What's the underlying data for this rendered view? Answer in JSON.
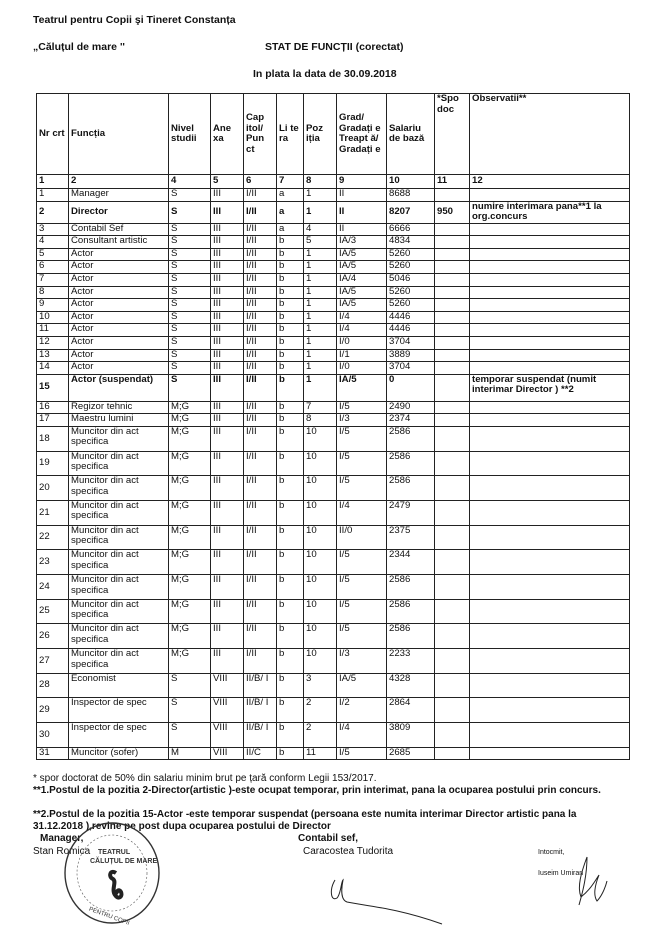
{
  "header": {
    "institution": "Teatrul pentru Copii şi Tineret Constanța",
    "subtitle": "„Căluțul de mare ''",
    "doc_title": "STAT DE FUNCȚII (corectat)",
    "date_line": "In plata  la data de 30.09.2018"
  },
  "table": {
    "columns": [
      "Nr crt",
      "Funcția",
      "Nivel studii",
      "Ane xa",
      "Cap itol/ Pun ct",
      "Li te ra",
      "Poz iția",
      "Grad/ Gradați e Treapt ă/ Gradați e",
      "Salariu de bază",
      "*Spo doc",
      "Observatii**"
    ],
    "column_numbers": [
      "1",
      "2",
      "4",
      "5",
      "6",
      "7",
      "8",
      "9",
      "10",
      "11",
      "12"
    ],
    "rows": [
      {
        "cells": [
          "1",
          "Manager",
          "S",
          "III",
          "I/II",
          "a",
          "1",
          "II",
          "8688",
          "",
          ""
        ]
      },
      {
        "bold": true,
        "cells": [
          "2",
          "Director",
          "S",
          "III",
          "I/II",
          "a",
          "1",
          "II",
          "8207",
          "950",
          "numire interimara pana**1 la  org.concurs"
        ]
      },
      {
        "cells": [
          "3",
          "Contabil Sef",
          "S",
          "III",
          "I/II",
          "a",
          "4",
          "II",
          "6666",
          "",
          ""
        ]
      },
      {
        "cells": [
          "4",
          "Consultant artistic",
          "S",
          "III",
          "I/II",
          "b",
          "5",
          "IA/3",
          "4834",
          "",
          ""
        ]
      },
      {
        "cells": [
          "5",
          "Actor",
          "S",
          "III",
          "I/II",
          "b",
          "1",
          "IA/5",
          "5260",
          "",
          ""
        ]
      },
      {
        "cells": [
          "6",
          "Actor",
          "S",
          "III",
          "I/II",
          "b",
          "1",
          "IA/5",
          "5260",
          "",
          ""
        ]
      },
      {
        "cells": [
          "7",
          "Actor",
          "S",
          "III",
          "I/II",
          "b",
          "1",
          "IA/4",
          "5046",
          "",
          ""
        ]
      },
      {
        "cells": [
          "8",
          "Actor",
          "S",
          "III",
          "I/II",
          "b",
          "1",
          "IA/5",
          "5260",
          "",
          ""
        ]
      },
      {
        "cells": [
          "9",
          "Actor",
          "S",
          "III",
          "I/II",
          "b",
          "1",
          "IA/5",
          "5260",
          "",
          ""
        ]
      },
      {
        "cells": [
          "10",
          "Actor",
          "S",
          "III",
          "I/II",
          "b",
          "1",
          "I/4",
          "4446",
          "",
          ""
        ]
      },
      {
        "cells": [
          "11",
          "Actor",
          "S",
          "III",
          "I/II",
          "b",
          "1",
          "I/4",
          "4446",
          "",
          ""
        ]
      },
      {
        "cells": [
          "12",
          "Actor",
          "S",
          "III",
          "I/II",
          "b",
          "1",
          "I/0",
          "3704",
          "",
          ""
        ]
      },
      {
        "cells": [
          "13",
          "Actor",
          "S",
          "III",
          "I/II",
          "b",
          "1",
          "I/1",
          "3889",
          "",
          ""
        ]
      },
      {
        "cells": [
          "14",
          "Actor",
          "S",
          "III",
          "I/II",
          "b",
          "1",
          "I/0",
          "3704",
          "",
          ""
        ]
      },
      {
        "bold": true,
        "tall": true,
        "cells": [
          "15",
          "Actor (suspendat)",
          "S",
          "III",
          "I/II",
          "b",
          "1",
          "IA/5",
          "0",
          "",
          "temporar suspendat (numit interimar Director ) **2"
        ]
      },
      {
        "cells": [
          "16",
          "Regizor tehnic",
          "M;G",
          "III",
          "I/II",
          "b",
          "7",
          "I/5",
          "2490",
          "",
          ""
        ]
      },
      {
        "cells": [
          "17",
          "Maestru lumini",
          "M;G",
          "III",
          "I/II",
          "b",
          "8",
          "I/3",
          "2374",
          "",
          ""
        ]
      },
      {
        "two": true,
        "cells": [
          "18",
          "Muncitor din act specifica",
          "M;G",
          "III",
          "I/II",
          "b",
          "10",
          "I/5",
          "2586",
          "",
          ""
        ]
      },
      {
        "two": true,
        "cells": [
          "19",
          "Muncitor din act specifica",
          "M;G",
          "III",
          "I/II",
          "b",
          "10",
          "I/5",
          "2586",
          "",
          ""
        ]
      },
      {
        "two": true,
        "cells": [
          "20",
          "Muncitor din act specifica",
          "M;G",
          "III",
          "I/II",
          "b",
          "10",
          "I/5",
          "2586",
          "",
          ""
        ]
      },
      {
        "two": true,
        "cells": [
          "21",
          "Muncitor din act specifica",
          "M;G",
          "III",
          "I/II",
          "b",
          "10",
          "I/4",
          "2479",
          "",
          ""
        ]
      },
      {
        "two": true,
        "cells": [
          "22",
          "Muncitor din act specifica",
          "M;G",
          "III",
          "I/II",
          "b",
          "10",
          "II/0",
          "2375",
          "",
          ""
        ]
      },
      {
        "two": true,
        "cells": [
          "23",
          "Muncitor din act specifica",
          "M;G",
          "III",
          "I/II",
          "b",
          "10",
          "I/5",
          "2344",
          "",
          ""
        ]
      },
      {
        "two": true,
        "cells": [
          "24",
          "Muncitor din act specifica",
          "M;G",
          "III",
          "I/II",
          "b",
          "10",
          "I/5",
          "2586",
          "",
          ""
        ]
      },
      {
        "two": true,
        "cells": [
          "25",
          "Muncitor din act specifica",
          "M;G",
          "III",
          "I/II",
          "b",
          "10",
          "I/5",
          "2586",
          "",
          ""
        ]
      },
      {
        "two": true,
        "cells": [
          "26",
          "Muncitor din act specifica",
          "M;G",
          "III",
          "I/II",
          "b",
          "10",
          "I/5",
          "2586",
          "",
          ""
        ]
      },
      {
        "two": true,
        "cells": [
          "27",
          "Muncitor din act specifica",
          "M;G",
          "III",
          "I/II",
          "b",
          "10",
          "I/3",
          "2233",
          "",
          ""
        ]
      },
      {
        "two": true,
        "cells": [
          "28",
          "Economist",
          "S",
          "VIII",
          "II/B/ I",
          "b",
          "3",
          "IA/5",
          "4328",
          "",
          ""
        ]
      },
      {
        "two": true,
        "cells": [
          "29",
          "Inspector de spec",
          "S",
          "VIII",
          "II/B/ I",
          "b",
          "2",
          "I/2",
          "2864",
          "",
          ""
        ]
      },
      {
        "two": true,
        "cells": [
          "30",
          "Inspector de spec",
          "S",
          "VIII",
          "II/B/ I",
          "b",
          "2",
          "I/4",
          "3809",
          "",
          ""
        ]
      },
      {
        "cells": [
          "31",
          "Muncitor (sofer)",
          "M",
          "VIII",
          "II/C",
          "b",
          "11",
          "I/5",
          "2685",
          "",
          ""
        ]
      }
    ]
  },
  "footnotes": {
    "note_star": "* spor doctorat de 50% din salariu minim brut pe țară conform Legii 153/2017.",
    "note_1": "**1.Postul de la pozitia 2-Director(artistic )-este ocupat temporar, prin interimat, pana la ocuparea postului prin concurs.",
    "note_2": "**2.Postul de la pozitia 15-Actor -este temporar suspendat (persoana este numita interimar Director artistic pana la 31.12.2018 ),revine pe post dupa ocuparea postului de Director"
  },
  "signatures": {
    "manager_title": "Manager,",
    "manager_name": "Stan Romica",
    "accountant_title": "Contabil sef,",
    "accountant_name": "Caracostea Tudorita",
    "prepared_title": "Intocmit,",
    "prepared_name": "Iuseim Umiran"
  },
  "stamp": {
    "text": "CONSILIUL JUDEȚEAN CONSTANȚA • TEATRUL CĂLUȚUL DE MARE • PENTRU COPII ȘI TINERET",
    "color": "#333333"
  }
}
